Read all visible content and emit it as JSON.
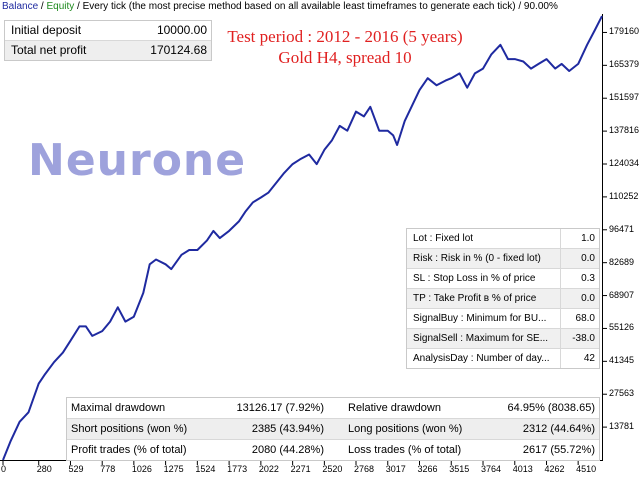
{
  "header": {
    "balance": "Balance",
    "sep1": " / ",
    "equity": "Equity",
    "rest": " / Every tick (the most precise method based on all available least timeframes to generate each tick) / 90.00%"
  },
  "deposit": {
    "initial_label": "Initial deposit",
    "initial_value": "10000.00",
    "profit_label": "Total net profit",
    "profit_value": "170124.68"
  },
  "test_info": {
    "line1": "Test period : 2012 - 2016 (5 years)",
    "line2": "Gold H4, spread 10"
  },
  "brand": "Neurone",
  "params": [
    {
      "label": "Lot : Fixed lot",
      "value": "1.0"
    },
    {
      "label": "Risk : Risk in % (0 - fixed lot)",
      "value": "0.0"
    },
    {
      "label": "SL : Stop Loss in % of price",
      "value": "0.3"
    },
    {
      "label": "TP : Take Profit в % of price",
      "value": "0.0"
    },
    {
      "label": "SignalBuy : Minimum for BU...",
      "value": "68.0"
    },
    {
      "label": "SignalSell : Maximum for SE...",
      "value": "-38.0"
    },
    {
      "label": "AnalysisDay : Number of day...",
      "value": "42"
    }
  ],
  "stats": [
    {
      "l1": "Maximal drawdown",
      "v1": "13126.17 (7.92%)",
      "l2": "Relative drawdown",
      "v2": "64.95% (8038.65)"
    },
    {
      "l1": "Short positions (won %)",
      "v1": "2385 (43.94%)",
      "l2": "Long positions (won %)",
      "v2": "2312 (44.64%)"
    },
    {
      "l1": "Profit trades (% of total)",
      "v1": "2080 (44.28%)",
      "l2": "Loss trades (% of total)",
      "v2": "2617 (55.72%)"
    }
  ],
  "chart_data": {
    "type": "line",
    "x_ticks": [
      "0",
      "280",
      "529",
      "778",
      "1026",
      "1275",
      "1524",
      "1773",
      "2022",
      "2271",
      "2520",
      "2768",
      "3017",
      "3266",
      "3515",
      "3764",
      "4013",
      "4262",
      "4510"
    ],
    "y_ticks": [
      "179160",
      "165379",
      "151597",
      "137816",
      "124034",
      "110252",
      "96471",
      "82689",
      "68907",
      "55126",
      "41345",
      "27563",
      "13781"
    ],
    "xlim": [
      0,
      4697
    ],
    "ylim": [
      0,
      186051
    ],
    "series": [
      {
        "name": "Balance",
        "color": "#1f2aa0",
        "x": [
          0,
          60,
          130,
          200,
          280,
          330,
          400,
          470,
          529,
          600,
          650,
          700,
          778,
          840,
          900,
          960,
          1026,
          1100,
          1150,
          1200,
          1275,
          1320,
          1400,
          1460,
          1524,
          1600,
          1650,
          1700,
          1773,
          1850,
          1900,
          1960,
          2022,
          2080,
          2140,
          2200,
          2271,
          2330,
          2400,
          2460,
          2520,
          2580,
          2640,
          2700,
          2768,
          2830,
          2880,
          2950,
          3017,
          3060,
          3090,
          3150,
          3266,
          3330,
          3400,
          3470,
          3515,
          3580,
          3640,
          3700,
          3764,
          3830,
          3900,
          3960,
          4013,
          4080,
          4140,
          4200,
          4262,
          4330,
          4380,
          4440,
          4510,
          4580,
          4640,
          4697
        ],
        "y": [
          0,
          8000,
          16000,
          20000,
          32000,
          36000,
          41000,
          45000,
          50000,
          56000,
          56000,
          52000,
          54000,
          58000,
          64000,
          58000,
          60000,
          70000,
          82000,
          84000,
          82000,
          80000,
          86000,
          88000,
          88000,
          92000,
          96000,
          93000,
          96000,
          100000,
          104000,
          108000,
          110000,
          112000,
          116000,
          120000,
          124000,
          126000,
          128000,
          124000,
          130000,
          134000,
          140000,
          138000,
          146000,
          144000,
          148000,
          138000,
          138000,
          136000,
          132000,
          142000,
          155000,
          160000,
          157000,
          159000,
          160000,
          162000,
          156000,
          162000,
          164000,
          170000,
          174000,
          168000,
          168000,
          167000,
          164000,
          166000,
          168000,
          164000,
          166000,
          163000,
          166000,
          174000,
          180000,
          186000
        ]
      }
    ]
  }
}
